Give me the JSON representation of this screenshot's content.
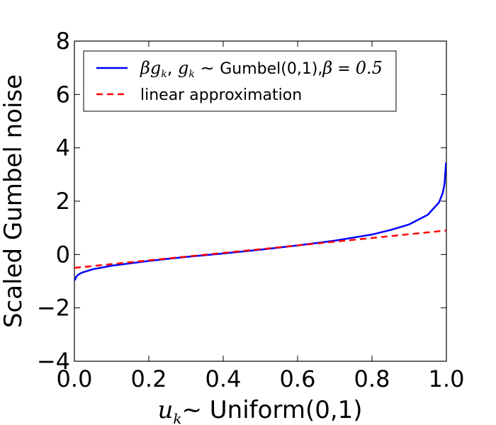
{
  "chart_data": {
    "type": "line",
    "xlabel_math": "u",
    "xlabel_math_sub": "k",
    "xlabel_tilde": "∼",
    "xlabel_text": " Uniform(0,1)",
    "ylabel": "Scaled Gumbel noise",
    "xlim": [
      0.0,
      1.0
    ],
    "ylim": [
      -4,
      8
    ],
    "xticks": [
      "0.0",
      "0.2",
      "0.4",
      "0.6",
      "0.8",
      "1.0"
    ],
    "yticks": [
      "−4",
      "−2",
      "0",
      "2",
      "4",
      "6",
      "8"
    ],
    "grid": false,
    "legend_position": "top-left",
    "beta": 0.5,
    "series": [
      {
        "name": "βg_k, g_k ∼ Gumbel(0,1),β = 0.5",
        "color": "#0000ff",
        "style": "solid",
        "x": [
          0.001,
          0.005,
          0.01,
          0.02,
          0.05,
          0.1,
          0.2,
          0.3,
          0.4,
          0.5,
          0.6,
          0.7,
          0.8,
          0.85,
          0.9,
          0.95,
          0.98,
          0.99,
          0.995,
          0.999
        ],
        "y": [
          -0.97,
          -0.83,
          -0.76,
          -0.68,
          -0.55,
          -0.42,
          -0.24,
          -0.09,
          0.04,
          0.18,
          0.34,
          0.52,
          0.75,
          0.92,
          1.13,
          1.49,
          1.95,
          2.3,
          2.65,
          3.45
        ]
      },
      {
        "name": "linear approximation",
        "color": "#ff0000",
        "style": "dashed",
        "x": [
          0.0,
          1.0
        ],
        "y": [
          -0.5,
          0.9
        ]
      }
    ]
  }
}
